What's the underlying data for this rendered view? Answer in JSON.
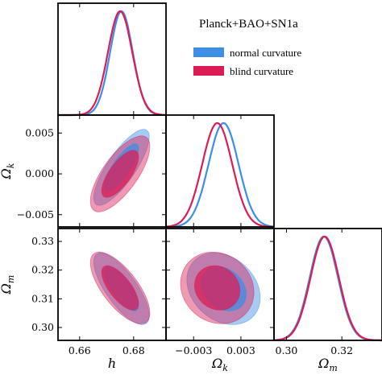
{
  "chart_data": {
    "type": "triangle",
    "legend": {
      "title": "Planck+BAO+SN1a",
      "entries": [
        {
          "name": "normal curvature",
          "color": "#3b8fe6"
        },
        {
          "name": "blind curvature",
          "color": "#dc1c55"
        }
      ],
      "placement": "top-right"
    },
    "parameters": [
      {
        "id": "h",
        "label": "h",
        "range": [
          0.652,
          0.692
        ],
        "ticks": [
          0.66,
          0.68
        ],
        "tick_labels": [
          "0.66",
          "0.68"
        ]
      },
      {
        "id": "Omega_k",
        "label": "Ω",
        "sub": "k",
        "range": [
          -0.0065,
          0.0072
        ],
        "ticks": [
          -0.003,
          0.003
        ],
        "tick_labels": [
          "−0.003",
          "0.003"
        ],
        "y_ticks": [
          -0.005,
          0.0,
          0.005
        ],
        "y_tick_labels": [
          "−0.005",
          "0.000",
          "0.005"
        ]
      },
      {
        "id": "Omega_m",
        "label": "Ω",
        "sub": "m",
        "range": [
          0.2955,
          0.3345
        ],
        "ticks": [
          0.3,
          0.32
        ],
        "tick_labels": [
          "0.30",
          "0.32"
        ],
        "y_ticks": [
          0.3,
          0.31,
          0.32,
          0.33
        ],
        "y_tick_labels": [
          "0.30",
          "0.31",
          "0.32",
          "0.33"
        ]
      }
    ],
    "series": [
      {
        "name": "normal curvature",
        "color": "#3b8fe6",
        "mean": {
          "h": 0.6755,
          "Omega_k": 0.0008,
          "Omega_m": 0.3135
        },
        "sigma": {
          "h": 0.0042,
          "Omega_k": 0.0019,
          "Omega_m": 0.0051
        },
        "corr": {
          "h_Omega_k": 0.8,
          "h_Omega_m": -0.75,
          "Omega_k_Omega_m": -0.25
        }
      },
      {
        "name": "blind curvature",
        "color": "#dc1c55",
        "mean": {
          "h": 0.675,
          "Omega_k": 0.0,
          "Omega_m": 0.3138
        },
        "sigma": {
          "h": 0.0045,
          "Omega_k": 0.0019,
          "Omega_m": 0.0051
        },
        "corr": {
          "h_Omega_k": 0.72,
          "h_Omega_m": -0.7,
          "Omega_k_Omega_m": -0.12
        }
      }
    ],
    "contour_levels": [
      "68%",
      "95%"
    ],
    "grid": false
  }
}
